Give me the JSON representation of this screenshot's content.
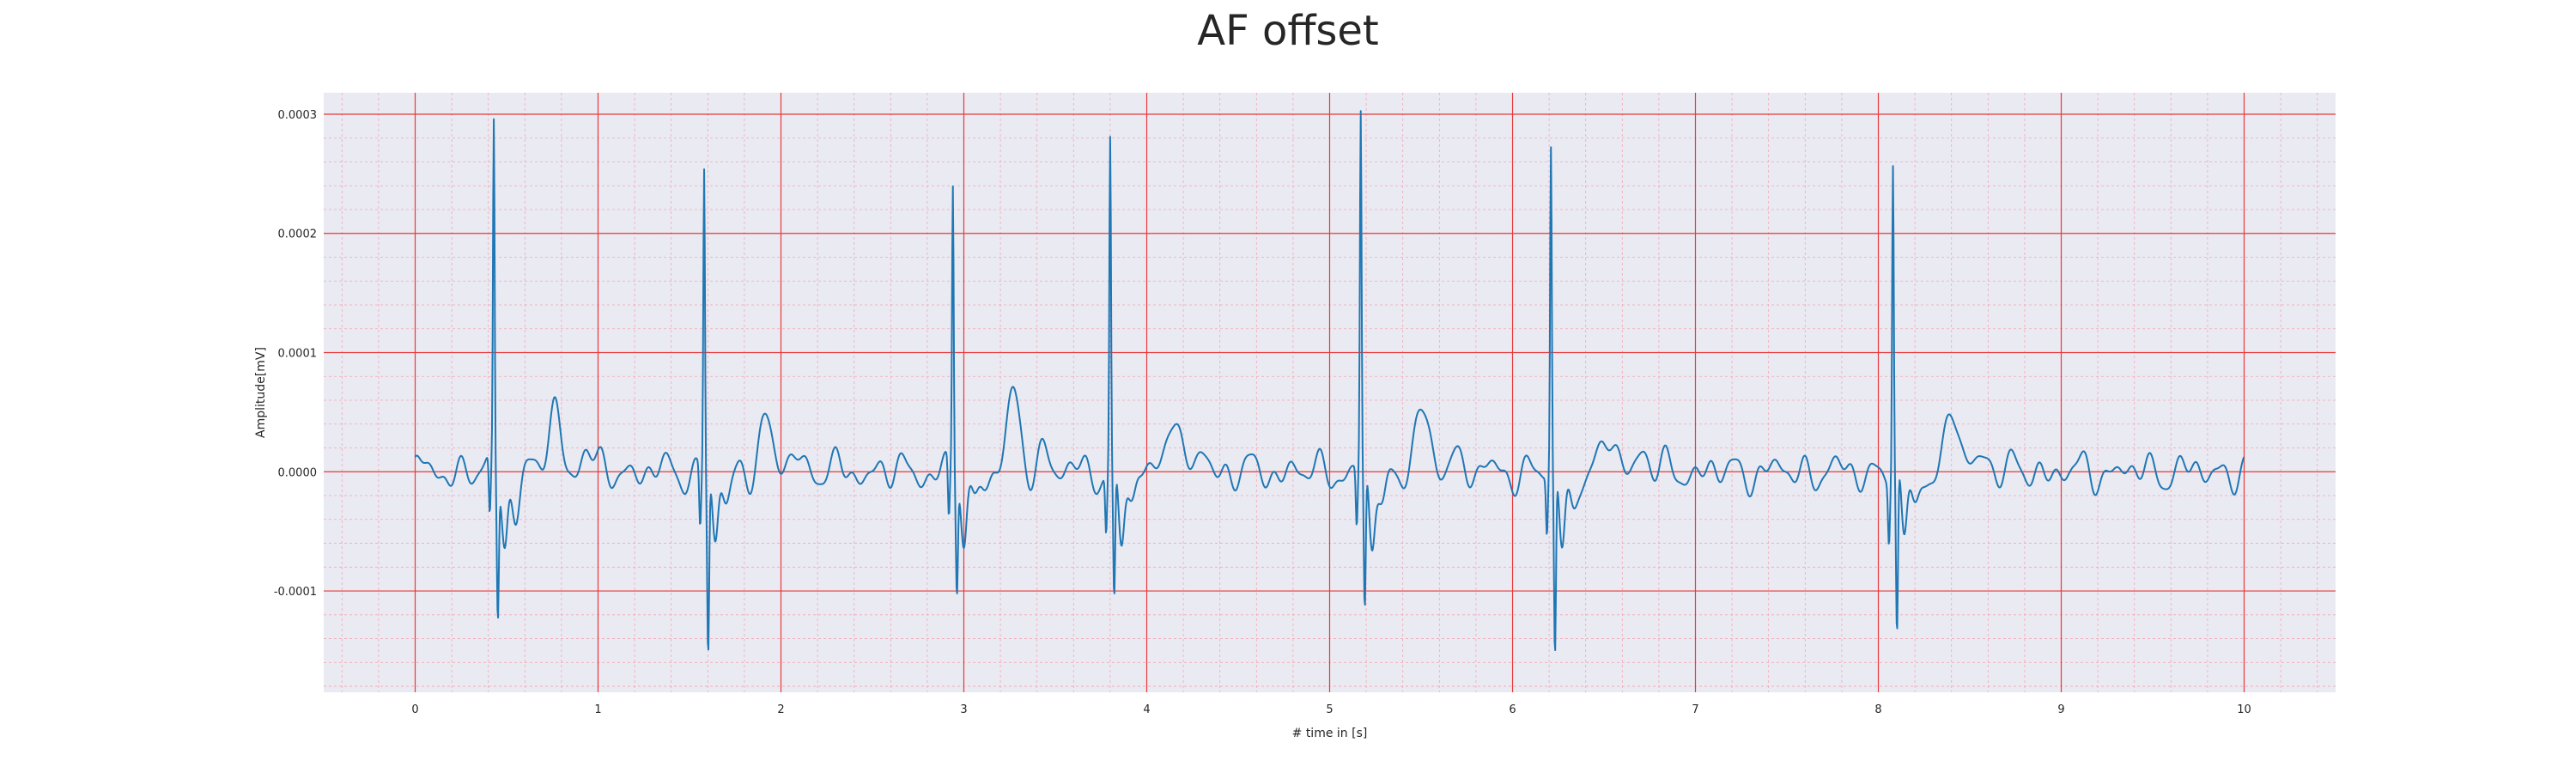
{
  "chart_data": {
    "type": "line",
    "title": "AF offset",
    "xlabel": "# time in [s]",
    "ylabel": "Amplitude[mV]",
    "xlim": [
      -0.5,
      10.5
    ],
    "ylim": [
      -0.000185,
      0.000318
    ],
    "xticks": [
      0,
      1,
      2,
      3,
      4,
      5,
      6,
      7,
      8,
      9,
      10
    ],
    "xtick_labels": [
      "0",
      "1",
      "2",
      "3",
      "4",
      "5",
      "6",
      "7",
      "8",
      "9",
      "10"
    ],
    "yticks": [
      -0.0001,
      0.0,
      0.0001,
      0.0002,
      0.0003
    ],
    "ytick_labels": [
      "-0.0001",
      "0.0000",
      "0.0001",
      "0.0002",
      "0.0003"
    ],
    "grid": true,
    "minor_grid": true,
    "major_grid_color": "#e8393a",
    "minor_grid_color": "#f4a6b4",
    "background_color": "#eaeaf2",
    "series": [
      {
        "color": "#1f77b4",
        "beats": [
          {
            "t": 0.43,
            "r": 0.000287,
            "s": -0.000118,
            "t_wave": 5e-05
          },
          {
            "t": 1.58,
            "r": 0.000257,
            "s": -0.000151,
            "t_wave": 4e-05
          },
          {
            "t": 2.94,
            "r": 0.00024,
            "s": -9.5e-05,
            "t_wave": 6e-05
          },
          {
            "t": 3.8,
            "r": 0.000276,
            "s": -0.000114,
            "t_wave": 5e-05
          },
          {
            "t": 5.17,
            "r": 0.000296,
            "s": -0.000124,
            "t_wave": 5e-05
          },
          {
            "t": 6.21,
            "r": 0.000267,
            "s": -0.000161,
            "t_wave": 3e-05
          },
          {
            "t": 8.08,
            "r": 0.000261,
            "s": -0.000144,
            "t_wave": 5e-05
          }
        ],
        "x_start": 0.0,
        "x_end": 10.0
      }
    ]
  }
}
